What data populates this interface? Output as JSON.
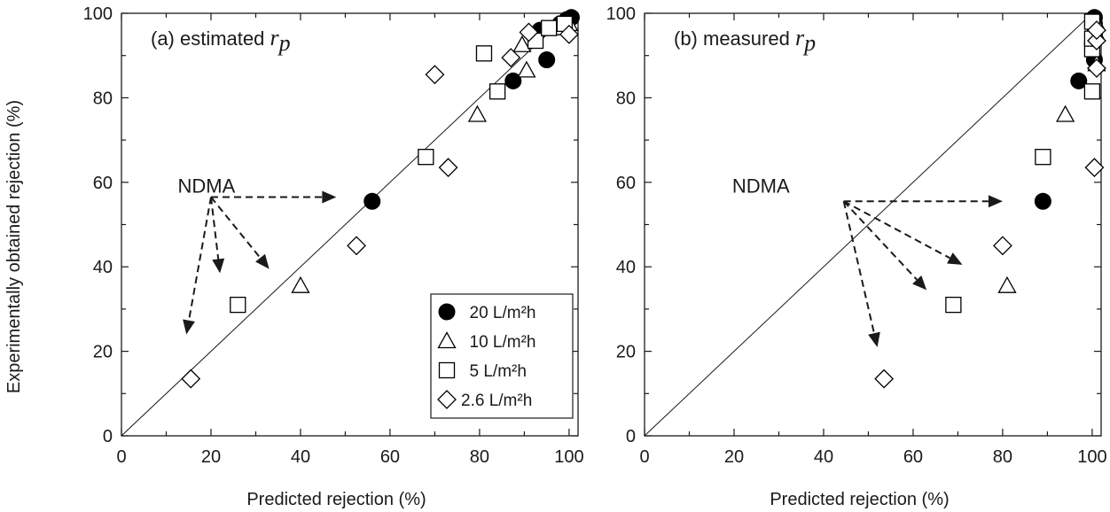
{
  "chart_data": [
    {
      "type": "scatter",
      "panel": "a",
      "title_text": "(a) estimated ",
      "title_var": "r",
      "title_sub": "p",
      "xlabel": "Predicted rejection (%)",
      "ylabel": "Experimentally obtained rejection (%)",
      "xlim": [
        0,
        102
      ],
      "ylim": [
        0,
        100
      ],
      "xticks": [
        0,
        20,
        40,
        60,
        80,
        100
      ],
      "yticks": [
        0,
        20,
        40,
        60,
        80,
        100
      ],
      "reference_line": "y = x",
      "annotation": {
        "text": "NDMA",
        "x": 19,
        "y": 59
      },
      "arrow_origin": {
        "x": 20,
        "y": 56.5
      },
      "arrow_targets": [
        {
          "x": 48,
          "y": 56.5
        },
        {
          "x": 14.5,
          "y": 24
        },
        {
          "x": 22,
          "y": 38.5
        },
        {
          "x": 33,
          "y": 39.5
        }
      ],
      "legend_placement": "bottom-right",
      "series": [
        {
          "name": "20 L/m²h",
          "marker": "circle-filled",
          "points": [
            [
              56,
              55.5
            ],
            [
              87.5,
              84
            ],
            [
              95,
              89
            ],
            [
              93.5,
              96
            ],
            [
              98,
              97.5
            ],
            [
              99.5,
              98.5
            ],
            [
              100.5,
              99
            ]
          ]
        },
        {
          "name": "10 L/m²h",
          "marker": "triangle-open",
          "points": [
            [
              40,
              35.5
            ],
            [
              79.5,
              76
            ],
            [
              90.5,
              86.5
            ],
            [
              89.5,
              92.5
            ],
            [
              97.5,
              96.5
            ],
            [
              100,
              97.5
            ]
          ]
        },
        {
          "name": "5 L/m²h",
          "marker": "square-open",
          "points": [
            [
              26,
              31
            ],
            [
              68,
              66
            ],
            [
              84,
              81.5
            ],
            [
              81,
              90.5
            ],
            [
              92.5,
              93.5
            ],
            [
              95.5,
              96.5
            ],
            [
              99,
              97.5
            ]
          ]
        },
        {
          "name": "2.6 L/m²h",
          "marker": "diamond-open",
          "points": [
            [
              15.5,
              13.5
            ],
            [
              52.5,
              45
            ],
            [
              73,
              63.5
            ],
            [
              70,
              85.5
            ],
            [
              87,
              89.5
            ],
            [
              91,
              95.5
            ],
            [
              100,
              95
            ]
          ]
        }
      ]
    },
    {
      "type": "scatter",
      "panel": "b",
      "title_text": "(b) measured ",
      "title_var": "r",
      "title_sub": "p",
      "xlabel": "Predicted rejection (%)",
      "ylabel": "",
      "xlim": [
        0,
        102
      ],
      "ylim": [
        0,
        100
      ],
      "xticks": [
        0,
        20,
        40,
        60,
        80,
        100
      ],
      "yticks": [
        0,
        20,
        40,
        60,
        80,
        100
      ],
      "reference_line": "y = x",
      "annotation": {
        "text": "NDMA",
        "x": 26,
        "y": 59
      },
      "arrow_origin": {
        "x": 44.5,
        "y": 55.5
      },
      "arrow_targets": [
        {
          "x": 80,
          "y": 55.5
        },
        {
          "x": 71,
          "y": 40.5
        },
        {
          "x": 63,
          "y": 34.5
        },
        {
          "x": 52,
          "y": 21
        }
      ],
      "series": [
        {
          "name": "20 L/m²h",
          "marker": "circle-filled",
          "points": [
            [
              89,
              55.5
            ],
            [
              97,
              84
            ],
            [
              100.5,
              89
            ],
            [
              100.5,
              95
            ],
            [
              100.5,
              97.5
            ],
            [
              100.5,
              99
            ]
          ]
        },
        {
          "name": "10 L/m²h",
          "marker": "triangle-open",
          "points": [
            [
              81,
              35.5
            ],
            [
              94,
              76
            ],
            [
              101,
              88
            ],
            [
              101,
              95
            ],
            [
              101,
              97.5
            ]
          ]
        },
        {
          "name": "5 L/m²h",
          "marker": "square-open",
          "points": [
            [
              69,
              31
            ],
            [
              89,
              66
            ],
            [
              100,
              81.5
            ],
            [
              100,
              91.5
            ],
            [
              100,
              94
            ],
            [
              100,
              98
            ]
          ]
        },
        {
          "name": "2.6 L/m²h",
          "marker": "diamond-open",
          "points": [
            [
              53.5,
              13.5
            ],
            [
              80,
              45
            ],
            [
              100.5,
              63.5
            ],
            [
              101,
              87
            ],
            [
              101,
              93.5
            ],
            [
              101,
              96
            ]
          ]
        }
      ]
    }
  ]
}
